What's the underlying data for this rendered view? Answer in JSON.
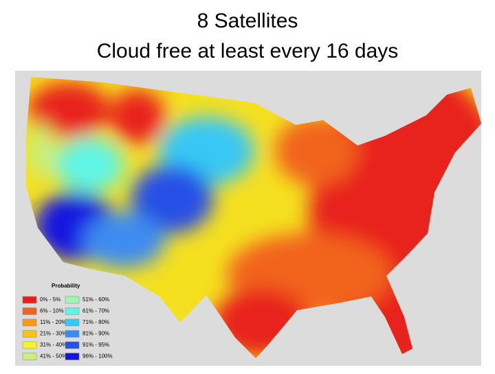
{
  "title": [
    "8 Satellites",
    "Cloud free at least every 16 days"
  ],
  "legend": {
    "title": "Probability",
    "items": [
      {
        "label": "0% - 5%",
        "color": "#e8201c"
      },
      {
        "label": "6% - 10%",
        "color": "#f2641e"
      },
      {
        "label": "11% - 20%",
        "color": "#f79a1c"
      },
      {
        "label": "21% - 30%",
        "color": "#f5c518"
      },
      {
        "label": "31% - 40%",
        "color": "#f5f522"
      },
      {
        "label": "41% - 50%",
        "color": "#c8f07a"
      },
      {
        "label": "51% - 60%",
        "color": "#9ef5b4"
      },
      {
        "label": "61% - 70%",
        "color": "#5ef5e6"
      },
      {
        "label": "71% - 80%",
        "color": "#38c8f5"
      },
      {
        "label": "81% - 90%",
        "color": "#3c8cf0"
      },
      {
        "label": "91% - 95%",
        "color": "#2850e6"
      },
      {
        "label": "96% - 100%",
        "color": "#1414e0"
      }
    ]
  }
}
